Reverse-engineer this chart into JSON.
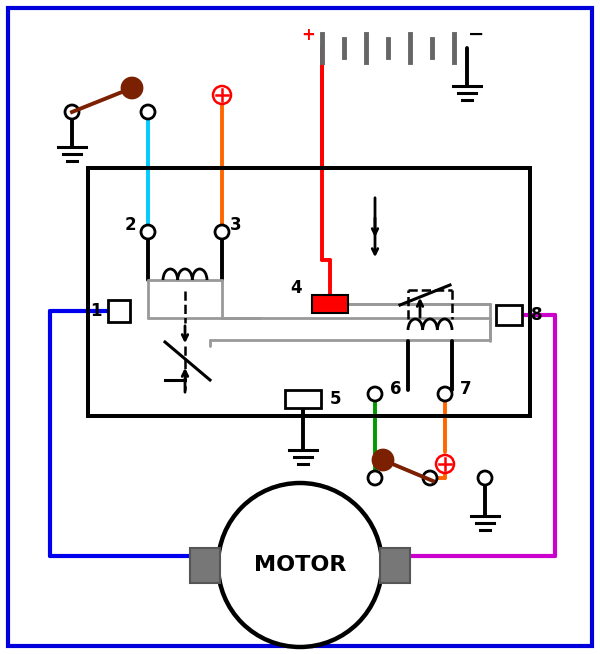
{
  "bg": "#ffffff",
  "border": "#0000dd",
  "c_blue": "#0000ee",
  "c_magenta": "#cc00cc",
  "c_cyan": "#00ccff",
  "c_red": "#ff0000",
  "c_green": "#009900",
  "c_orange": "#ff6600",
  "c_black": "#000000",
  "c_gray": "#999999",
  "c_brown": "#7b2000",
  "c_darkgray": "#666666"
}
